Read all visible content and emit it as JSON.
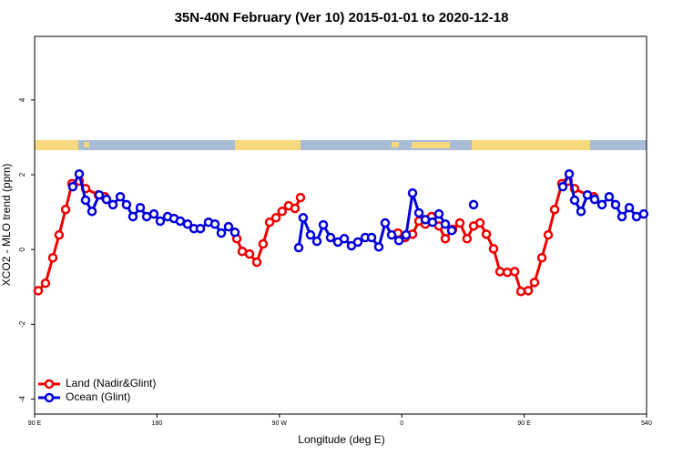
{
  "chart_data": {
    "type": "line",
    "title": "35N-40N February (Ver 10)   2015-01-01 to 2020-12-18",
    "xlabel": "Longitude (deg E)",
    "ylabel": "XCO2 - MLO trend (ppm)",
    "xlim": [
      90,
      540
    ],
    "xticks": [
      {
        "value": 90,
        "label": "90 E"
      },
      180,
      {
        "value": 270,
        "label": "90 W"
      },
      {
        "value": 360,
        "label": "0"
      },
      {
        "value": 450,
        "label": "90 E"
      },
      540
    ],
    "ylim": [
      -4.4,
      5.7
    ],
    "yticks": [
      -4,
      -2,
      0,
      2,
      4
    ],
    "legend": "bottom-left",
    "series": [
      {
        "name": "Land (Nadir&Glint)",
        "color": "#ee0000",
        "x": [
          92.7,
          98,
          103.4,
          108,
          112.8,
          117.5,
          122.8,
          127.5,
          136.9,
          141.6,
          190,
          238.7,
          242.7,
          248,
          253.4,
          258,
          262.8,
          267.5,
          272,
          276.8,
          281.5,
          285.5,
          320,
          357.2,
          362.5,
          367.9,
          372.6,
          377.3,
          381.9,
          387.3,
          392,
          397.4,
          402.7,
          408,
          412.8,
          417.5,
          422.2,
          427.5,
          432.2,
          437.6,
          443,
          447.6,
          453,
          457.6,
          463,
          467.7,
          472.4,
          477.7,
          482.4,
          487,
          496.5,
          501.2
        ],
        "values": [
          -1.1,
          -0.9,
          -0.22,
          0.39,
          1.07,
          1.76,
          1.83,
          1.63,
          1.46,
          1.41,
          null,
          0.29,
          -0.05,
          -0.12,
          -0.34,
          0.15,
          0.73,
          0.85,
          1.02,
          1.17,
          1.1,
          1.39,
          null,
          0.44,
          0.32,
          0.41,
          0.76,
          0.68,
          0.88,
          0.63,
          0.29,
          0.54,
          0.71,
          0.29,
          0.63,
          0.71,
          0.41,
          0.02,
          -0.59,
          -0.61,
          -0.59,
          -1.12,
          -1.1,
          -0.88,
          -0.22,
          0.39,
          1.07,
          1.76,
          1.83,
          1.63,
          1.46,
          1.41
        ]
      },
      {
        "name": "Ocean (Glint)",
        "color": "#0000dd",
        "x": [
          118.1,
          122.8,
          127.5,
          132.2,
          137.5,
          142.9,
          147.6,
          153,
          157.6,
          162.3,
          167.7,
          172.4,
          177.7,
          182.4,
          187.8,
          192.5,
          197.1,
          202.5,
          207.2,
          211.9,
          217.9,
          222.6,
          227.3,
          232.6,
          237.3,
          260,
          284.2,
          287.5,
          292.9,
          297.6,
          302.3,
          307.6,
          313,
          317.7,
          323,
          327.7,
          333.1,
          337.8,
          343.1,
          347.8,
          352.5,
          357.9,
          363.2,
          367.9,
          372.6,
          377.3,
          382.6,
          387.3,
          392,
          396.7,
          405,
          412.8,
          445,
          478.4,
          483.1,
          487.1,
          491.8,
          496.5,
          501.8,
          507.2,
          512.5,
          517.2,
          521.9,
          527.3,
          532.6,
          537.9
        ],
        "values": [
          1.68,
          2.02,
          1.32,
          1.02,
          1.46,
          1.34,
          1.2,
          1.41,
          1.2,
          0.88,
          1.12,
          0.88,
          0.95,
          0.76,
          0.88,
          0.83,
          0.76,
          0.68,
          0.56,
          0.56,
          0.73,
          0.68,
          0.44,
          0.61,
          0.46,
          null,
          0.05,
          0.85,
          0.39,
          0.22,
          0.66,
          0.32,
          0.2,
          0.29,
          0.1,
          0.2,
          0.32,
          0.32,
          0.07,
          0.71,
          0.39,
          0.24,
          0.39,
          1.51,
          0.98,
          0.8,
          0.73,
          0.95,
          0.68,
          0.51,
          null,
          1.2,
          null,
          1.68,
          2.02,
          1.32,
          1.02,
          1.46,
          1.34,
          1.2,
          1.41,
          1.2,
          0.88,
          1.12,
          0.88,
          0.95
        ]
      }
    ]
  }
}
